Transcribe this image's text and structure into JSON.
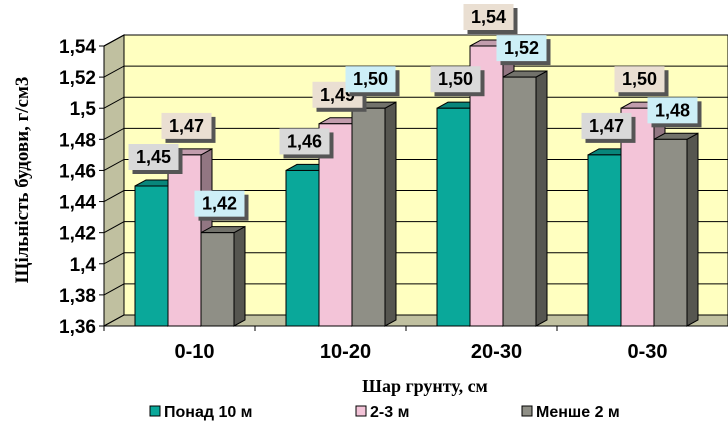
{
  "chart_data": {
    "type": "bar",
    "categories": [
      "0-10",
      "10-20",
      "20-30",
      "0-30"
    ],
    "series": [
      {
        "name": "Понад 10 м",
        "values": [
          1.45,
          1.46,
          1.5,
          1.47
        ],
        "labels": [
          "1,45",
          "1,46",
          "1,50",
          "1,47"
        ],
        "color": "#0aa89a",
        "label_bg": "#d9d9d9"
      },
      {
        "name": "2-3 м",
        "values": [
          1.47,
          1.49,
          1.54,
          1.5
        ],
        "labels": [
          "1,47",
          "1,49",
          "1,54",
          "1,50"
        ],
        "color": "#f3c4d8",
        "label_bg": "#eadfd2"
      },
      {
        "name": "Менше 2 м",
        "values": [
          1.42,
          1.5,
          1.52,
          1.48
        ],
        "labels": [
          "1,42",
          "1,50",
          "1,52",
          "1,48"
        ],
        "color": "#8f8f86",
        "label_bg": "#cdeff7"
      }
    ],
    "ylabel": "Щільність будови, г/см3",
    "xlabel": "Шар грунту, см",
    "ylim": [
      1.36,
      1.54
    ],
    "yticks": [
      1.36,
      1.38,
      1.4,
      1.42,
      1.44,
      1.46,
      1.48,
      1.5,
      1.52,
      1.54
    ],
    "ytick_labels": [
      "1,36",
      "1,38",
      "1,4",
      "1,42",
      "1,44",
      "1,46",
      "1,48",
      "1,5",
      "1,52",
      "1,54"
    ],
    "grid": true,
    "legend": "bottom",
    "plot_bg": "#ffffc0",
    "floor_color": "#c0c0a0"
  }
}
